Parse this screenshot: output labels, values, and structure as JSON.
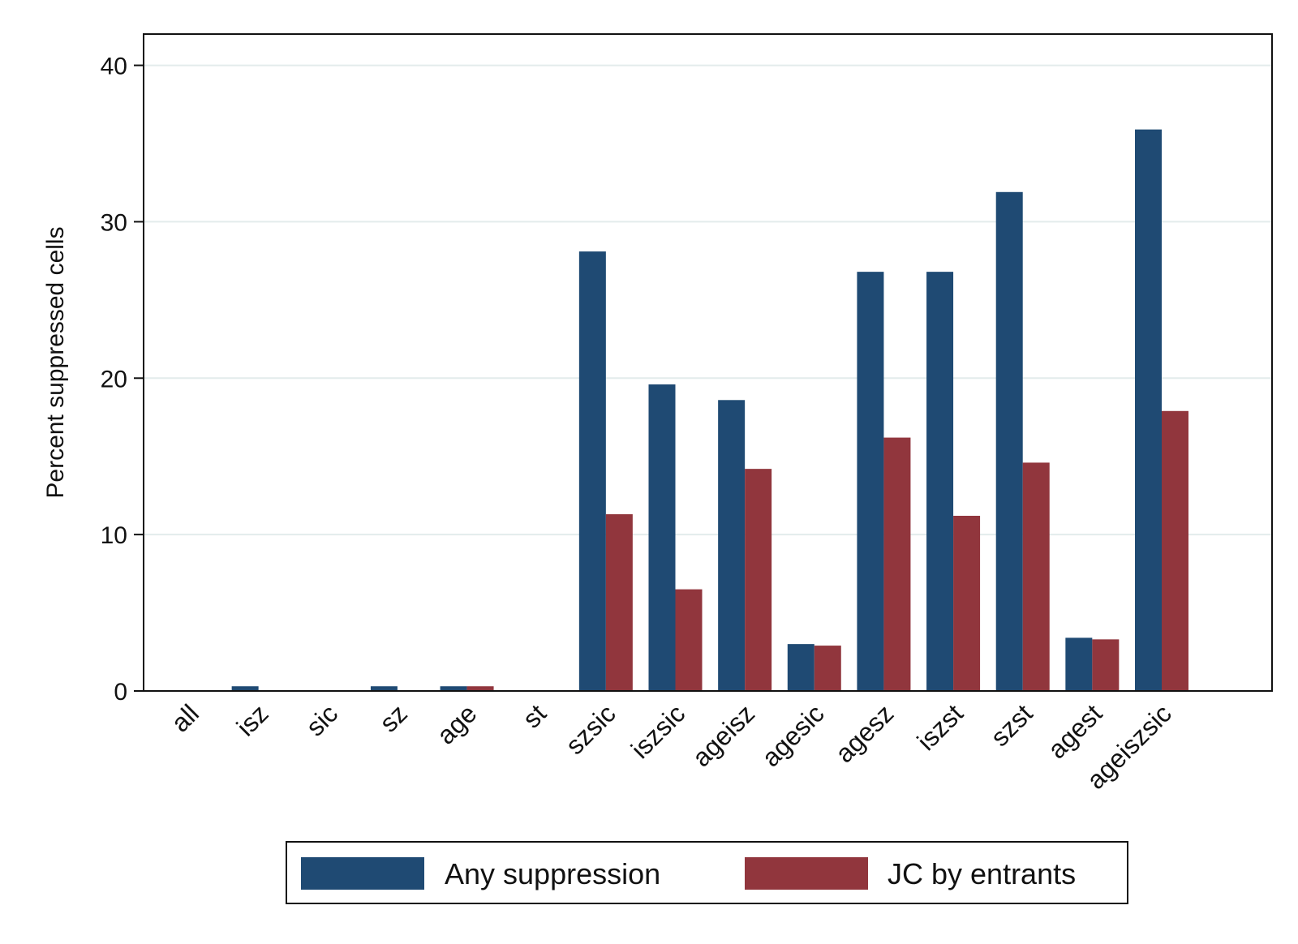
{
  "chart_data": {
    "type": "bar",
    "title": "",
    "xlabel": "",
    "ylabel": "Percent suppressed cells",
    "ylim": [
      0,
      42
    ],
    "yticks": [
      0,
      10,
      20,
      30,
      40
    ],
    "grid": true,
    "legend_position": "bottom",
    "categories": [
      "all",
      "isz",
      "sic",
      "sz",
      "age",
      "st",
      "szsic",
      "iszsic",
      "ageisz",
      "agesic",
      "agesz",
      "iszst",
      "szst",
      "agest",
      "ageiszsic"
    ],
    "series": [
      {
        "name": "Any suppression",
        "color": "#1f4a73",
        "values": [
          0,
          0.3,
          0,
          0.3,
          0.3,
          0,
          28.1,
          19.6,
          18.6,
          3.0,
          26.8,
          26.8,
          31.9,
          3.4,
          35.9
        ]
      },
      {
        "name": "JC by entrants",
        "color": "#91363d",
        "values": [
          0,
          0,
          0,
          0,
          0.3,
          0,
          11.3,
          6.5,
          14.2,
          2.9,
          16.2,
          11.2,
          14.6,
          3.3,
          17.9
        ]
      }
    ]
  }
}
